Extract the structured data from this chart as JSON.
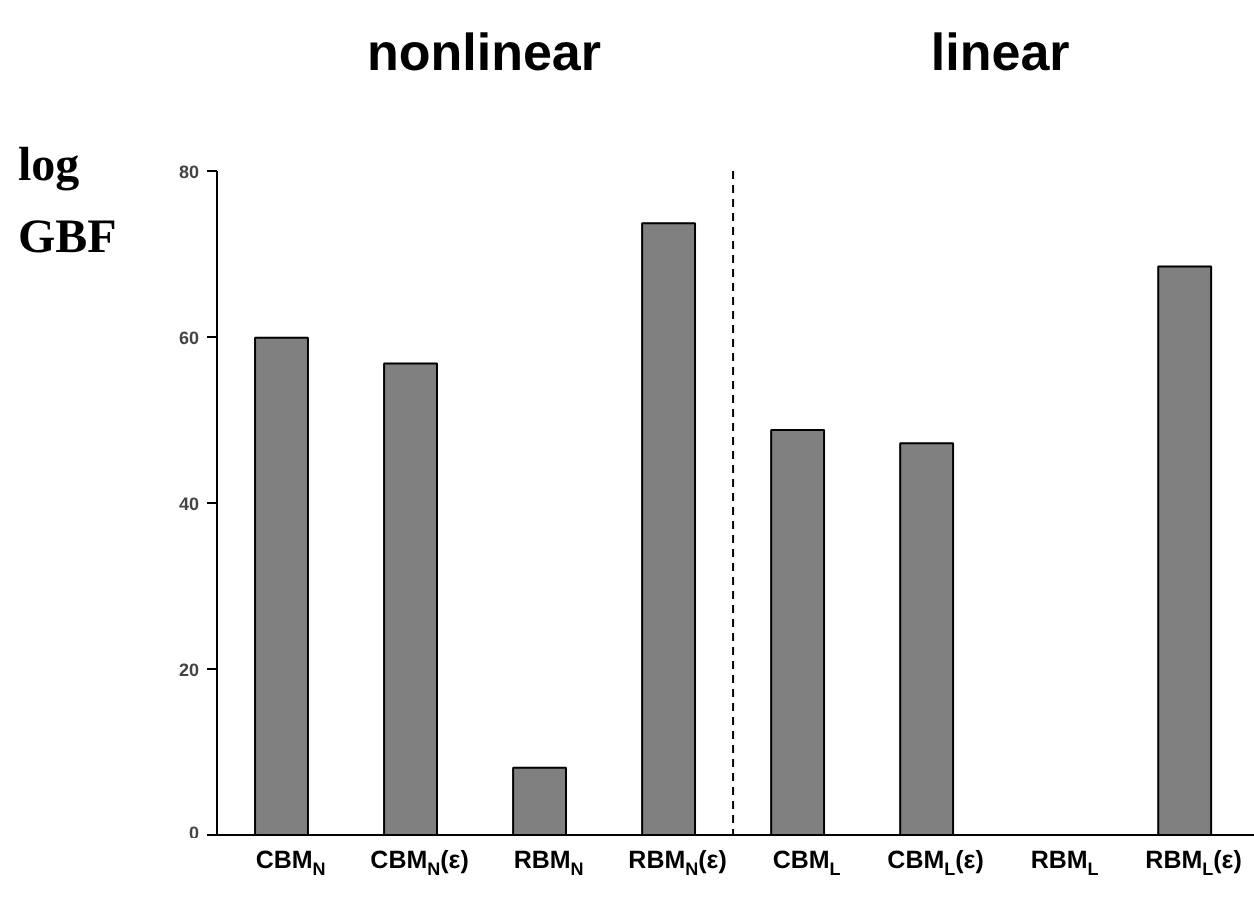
{
  "chart_data": {
    "type": "bar",
    "ylabel": "log GBF",
    "annotations": [
      "nonlinear",
      "linear"
    ],
    "categories": [
      "CBM$_{N}$",
      "CBM$_{N}$(ε)",
      "RBM$_{N}$",
      "RBM$_{N}$(ε)",
      "CBM$_{L}$",
      "CBM$_{L}$(ε)",
      "RBM$_{L}$",
      "RBM$_{L}$(ε)"
    ],
    "values": [
      59.9,
      56.8,
      8.1,
      73.7,
      48.8,
      47.2,
      null,
      68.5
    ],
    "color": "#808080",
    "ylim": [
      0,
      80
    ],
    "yticks": [
      0,
      20,
      40,
      60,
      80
    ],
    "grid": false
  }
}
